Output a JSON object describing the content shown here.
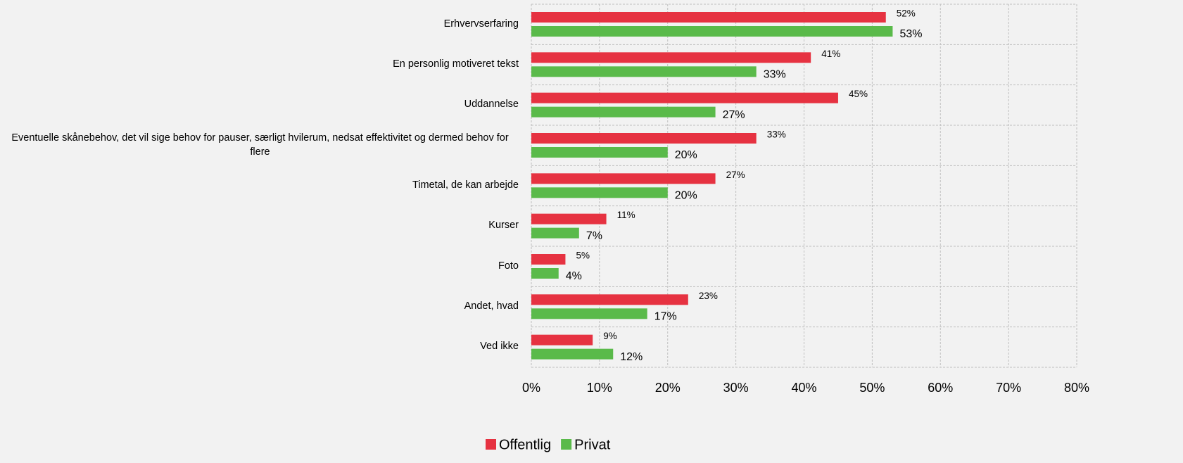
{
  "chart_data": {
    "type": "hbar",
    "categories": [
      "Erhvervserfaring",
      "En personlig motiveret tekst",
      "Uddannelse",
      "Eventuelle skånebehov, det vil sige behov for pauser, særligt hvilerum, nedsat effektivitet og dermed behov for flere",
      "Timetal, de kan arbejde",
      "Kurser",
      "Foto",
      "Andet, hvad",
      "Ved ikke"
    ],
    "series": [
      {
        "name": "Offentlig",
        "color": "#e63241",
        "values": [
          52,
          41,
          45,
          33,
          27,
          11,
          5,
          23,
          9
        ],
        "value_labels": [
          "52%",
          "41%",
          "45%",
          "33%",
          "27%",
          "11%",
          "5%",
          "23%",
          "9%"
        ]
      },
      {
        "name": "Privat",
        "color": "#5aba4a",
        "values": [
          53,
          33,
          27,
          20,
          20,
          7,
          4,
          17,
          12
        ],
        "value_labels": [
          "53%",
          "33%",
          "27%",
          "20%",
          "20%",
          "7%",
          "4%",
          "17%",
          "12%"
        ]
      }
    ],
    "xlim": [
      0,
      80
    ],
    "xticks": [
      {
        "value": 0,
        "label": "0%"
      },
      {
        "value": 10,
        "label": "10%"
      },
      {
        "value": 20,
        "label": "20%"
      },
      {
        "value": 30,
        "label": "30%"
      },
      {
        "value": 40,
        "label": "40%"
      },
      {
        "value": 50,
        "label": "50%"
      },
      {
        "value": 60,
        "label": "60%"
      },
      {
        "value": 70,
        "label": "70%"
      },
      {
        "value": 80,
        "label": "80%"
      }
    ],
    "grid": true,
    "legend": "bottom"
  }
}
